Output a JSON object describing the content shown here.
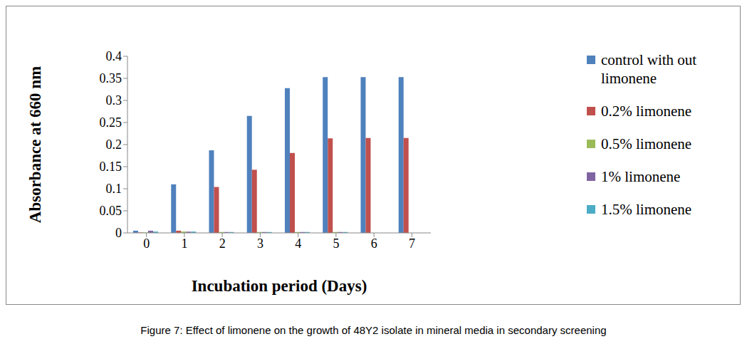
{
  "chart_data": {
    "type": "bar",
    "title": "Figure 7: Effect of limonene on the growth of 48Y2 isolate in mineral media in secondary screening",
    "x_label": "Incubation period  (Days)",
    "y_label": "Absorbance at 660 nm",
    "categories": [
      "0",
      "1",
      "2",
      "3",
      "4",
      "5",
      "6",
      "7"
    ],
    "series": [
      {
        "name": "control with out limonene",
        "color": "#4F81BD",
        "values": [
          0.005,
          0.11,
          0.187,
          0.265,
          0.328,
          0.353,
          0.353,
          0.353
        ]
      },
      {
        "name": "0.2% limonene",
        "color": "#C0504D",
        "values": [
          0.001,
          0.005,
          0.104,
          0.143,
          0.181,
          0.214,
          0.215,
          0.215
        ]
      },
      {
        "name": "0.5% limonene",
        "color": "#9BBB59",
        "values": [
          0.001,
          0.003,
          0.002,
          0.002,
          0.002,
          0.002,
          0,
          0
        ]
      },
      {
        "name": "1% limonene",
        "color": "#8064A2",
        "values": [
          0.005,
          0.003,
          0.002,
          0.002,
          0.002,
          0.002,
          0,
          0
        ]
      },
      {
        "name": "1.5% limonene",
        "color": "#4BACC6",
        "values": [
          0.003,
          0.003,
          0.002,
          0.002,
          0.002,
          0.002,
          0,
          0
        ]
      }
    ],
    "ylim": [
      0,
      0.4
    ],
    "yticks": [
      0,
      0.05,
      0.1,
      0.15,
      0.2,
      0.25,
      0.3,
      0.35,
      0.4
    ],
    "grid": false,
    "legend": "right"
  }
}
